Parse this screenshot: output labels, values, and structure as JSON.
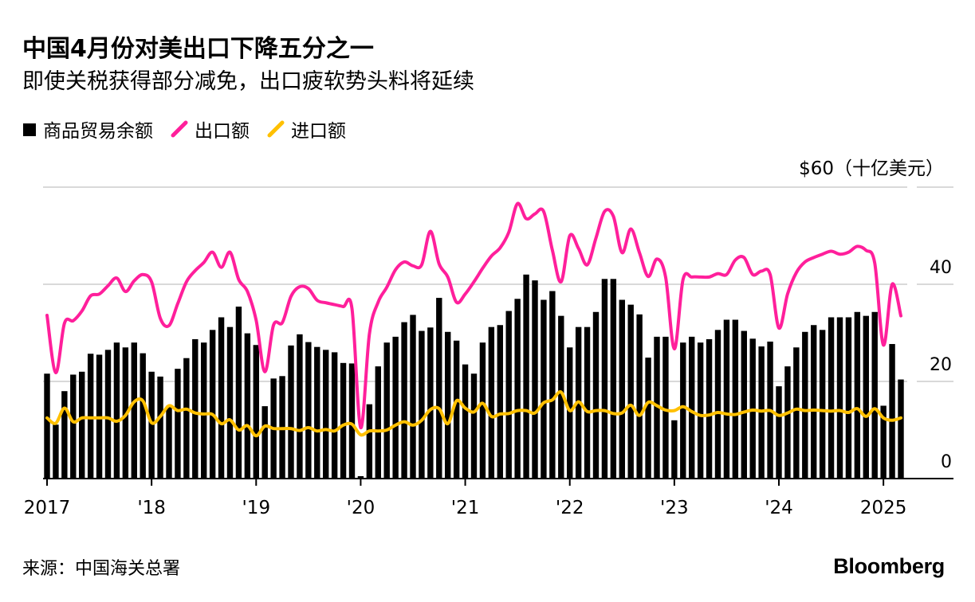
{
  "title": "中国4月份对美出口下降五分之一",
  "subtitle": "即使关税获得部分减免，出口疲软势头料将延续",
  "source": "来源：中国海关总署",
  "brand": "Bloomberg",
  "colors": {
    "balance": "#000000",
    "exports": "#ff1f9b",
    "imports": "#ffc000",
    "grid": "#d9d9d9"
  },
  "chart_data": {
    "type": "bar",
    "ylabel": "$60（十亿美元）",
    "ylim": [
      0,
      60
    ],
    "yticks": [
      0,
      20,
      40
    ],
    "grid": true,
    "legend_position": "top-left",
    "x_start": "2017-01",
    "x_ticks": [
      {
        "label": "2017",
        "year": 2017
      },
      {
        "label": "'18",
        "year": 2018
      },
      {
        "label": "'19",
        "year": 2019
      },
      {
        "label": "'20",
        "year": 2020
      },
      {
        "label": "'21",
        "year": 2021
      },
      {
        "label": "'22",
        "year": 2022
      },
      {
        "label": "'23",
        "year": 2023
      },
      {
        "label": "'24",
        "year": 2024
      },
      {
        "label": "2025",
        "year": 2025
      }
    ],
    "series": [
      {
        "name": "商品贸易余额",
        "type": "bar",
        "values": [
          21.6,
          11.1,
          18.0,
          21.4,
          22.0,
          25.7,
          25.5,
          26.5,
          28.0,
          27.0,
          28.0,
          25.8,
          22.0,
          21.0,
          15.0,
          22.6,
          24.8,
          28.7,
          28.0,
          30.6,
          33.2,
          31.2,
          35.4,
          29.9,
          27.5,
          14.9,
          20.6,
          21.1,
          27.4,
          29.7,
          28.1,
          27.1,
          26.5,
          26.0,
          23.8,
          23.7,
          0.5,
          15.3,
          23.1,
          28.0,
          29.2,
          32.2,
          33.7,
          30.4,
          31.1,
          37.2,
          30.2,
          28.4,
          23.5,
          21.6,
          28.0,
          31.2,
          31.6,
          34.5,
          37.0,
          42.0,
          40.8,
          36.8,
          38.6,
          33.5,
          27.0,
          31.2,
          31.2,
          34.3,
          41.1,
          41.1,
          36.8,
          35.8,
          33.8,
          24.9,
          29.2,
          29.2,
          12.0,
          28.0,
          29.2,
          28.0,
          28.7,
          30.6,
          32.7,
          32.7,
          30.4,
          28.8,
          27.2,
          28.2,
          19.0,
          23.1,
          27.0,
          30.2,
          31.6,
          30.6,
          33.2,
          33.2,
          33.2,
          34.3,
          33.5,
          34.3,
          15.0,
          27.7,
          20.4
        ]
      },
      {
        "name": "出口额",
        "type": "line",
        "values": [
          33.6,
          21.8,
          32.0,
          32.5,
          34.5,
          37.6,
          38.0,
          39.7,
          41.3,
          38.5,
          40.7,
          42.0,
          40.5,
          33.0,
          31.5,
          36.0,
          40.5,
          42.8,
          44.5,
          46.6,
          43.5,
          46.6,
          41.0,
          38.5,
          32.6,
          22.0,
          31.6,
          32.1,
          37.5,
          39.5,
          39.1,
          36.7,
          36.2,
          35.8,
          35.4,
          35.0,
          10.5,
          29.8,
          36.3,
          39.4,
          43.0,
          44.6,
          43.8,
          44.0,
          50.9,
          44.2,
          41.5,
          36.3,
          38.0,
          40.5,
          43.3,
          45.8,
          47.5,
          50.7,
          56.6,
          53.5,
          54.5,
          55.0,
          47.0,
          40.5,
          50.0,
          47.4,
          44.0,
          49.5,
          55.0,
          54.0,
          46.5,
          51.4,
          46.5,
          41.6,
          45.2,
          41.5,
          26.7,
          41.0,
          41.5,
          41.5,
          41.5,
          42.2,
          42.0,
          45.0,
          45.5,
          42.0,
          42.7,
          42.0,
          31.0,
          38.0,
          42.4,
          44.6,
          45.5,
          46.2,
          46.8,
          46.2,
          46.6,
          47.8,
          47.0,
          44.4,
          27.5,
          40.0,
          33.5
        ]
      },
      {
        "name": "进口额",
        "type": "line",
        "values": [
          12.5,
          11.4,
          14.5,
          11.7,
          12.5,
          12.5,
          12.5,
          12.5,
          11.8,
          13.0,
          15.8,
          16.0,
          11.5,
          12.8,
          15.0,
          14.0,
          14.3,
          13.5,
          13.3,
          13.2,
          11.3,
          12.1,
          10.0,
          10.9,
          8.8,
          10.8,
          10.3,
          10.3,
          10.3,
          9.9,
          10.5,
          9.8,
          10.1,
          9.8,
          11.0,
          11.2,
          9.0,
          9.8,
          9.8,
          10.0,
          11.0,
          11.7,
          11.0,
          12.0,
          14.2,
          14.4,
          11.3,
          16.0,
          14.5,
          13.7,
          15.5,
          12.8,
          13.3,
          13.4,
          14.0,
          14.0,
          13.5,
          15.6,
          16.2,
          17.8,
          14.0,
          15.8,
          13.8,
          14.0,
          14.0,
          13.4,
          13.5,
          15.1,
          13.0,
          15.7,
          15.0,
          14.1,
          14.0,
          14.8,
          13.8,
          13.0,
          13.1,
          13.6,
          13.3,
          13.2,
          13.7,
          14.1,
          13.9,
          14.0,
          13.0,
          13.5,
          14.3,
          14.0,
          14.1,
          14.0,
          13.9,
          14.0,
          13.6,
          14.4,
          12.8,
          14.4,
          12.5,
          12.0,
          12.5
        ]
      }
    ]
  }
}
